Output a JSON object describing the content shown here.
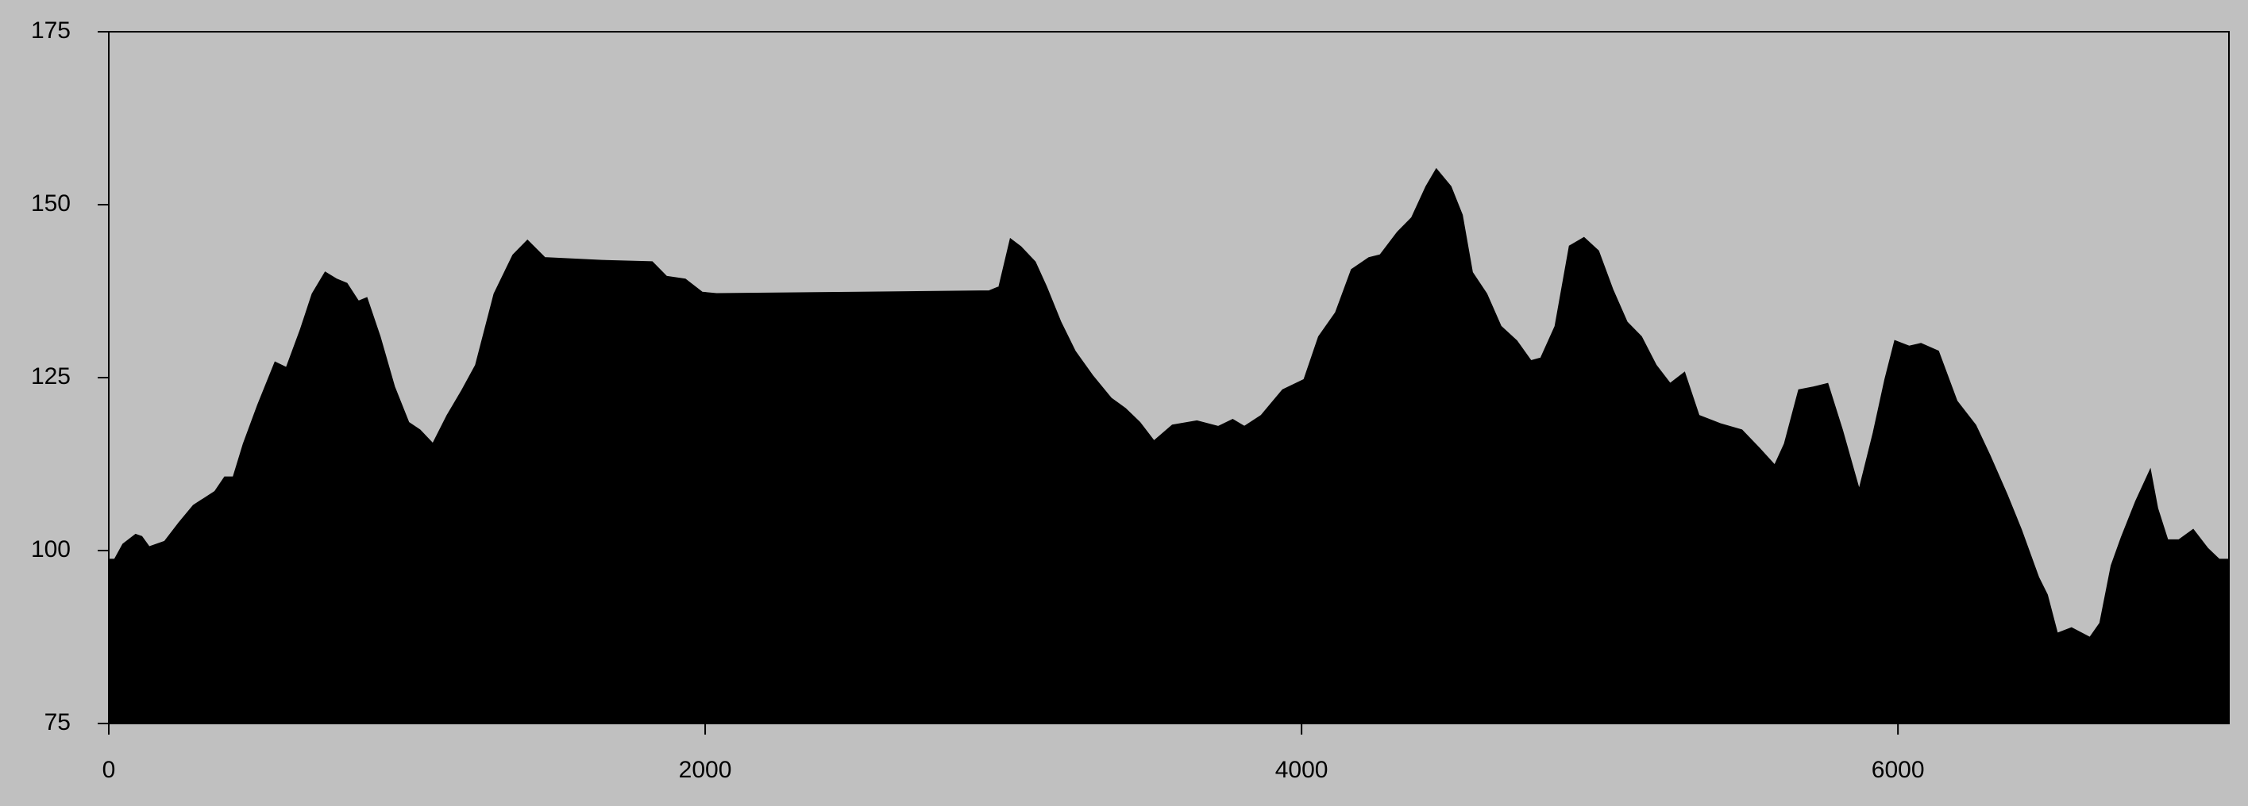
{
  "chart_data": {
    "type": "area",
    "color": "#000000",
    "x": [
      0,
      20,
      48,
      90,
      110,
      135,
      188,
      236,
      284,
      356,
      389,
      418,
      452,
      500,
      558,
      596,
      644,
      683,
      726,
      764,
      798,
      837,
      865,
      909,
      957,
      1005,
      1043,
      1087,
      1135,
      1183,
      1231,
      1293,
      1356,
      1404,
      1462,
      1654,
      1822,
      1870,
      1933,
      1990,
      2038,
      2519,
      2952,
      2986,
      3024,
      3058,
      3106,
      3144,
      3192,
      3240,
      3298,
      3361,
      3409,
      3457,
      3505,
      3567,
      3649,
      3721,
      3769,
      3808,
      3865,
      3937,
      4009,
      4058,
      4115,
      4168,
      4226,
      4264,
      4322,
      4370,
      4418,
      4452,
      4500,
      4538,
      4572,
      4620,
      4668,
      4721,
      4769,
      4803,
      4851,
      4899,
      4947,
      4995,
      5043,
      5091,
      5139,
      5188,
      5236,
      5284,
      5332,
      5404,
      5476,
      5534,
      5587,
      5620,
      5668,
      5716,
      5764,
      5813,
      5870,
      5918,
      5957,
      5990,
      6038,
      6077,
      6135,
      6197,
      6260,
      6308,
      6365,
      6413,
      6471,
      6500,
      6534,
      6582,
      6644,
      6678,
      6716,
      6750,
      6798,
      6846,
      6870,
      6904,
      6942,
      6990,
      7038,
      7077,
      7110
    ],
    "y": [
      98.7,
      98.7,
      100.9,
      102.3,
      102,
      100.5,
      101.3,
      104,
      106.5,
      108.5,
      110.6,
      110.6,
      115.4,
      121,
      127.2,
      126.4,
      132,
      137.1,
      140.2,
      139.2,
      138.6,
      136,
      136.5,
      130.9,
      123.7,
      118.5,
      117.4,
      115.4,
      119.5,
      123,
      126.8,
      137.1,
      142.7,
      144.8,
      142.3,
      141.9,
      141.7,
      139.6,
      139.2,
      137.3,
      137.1,
      137.3,
      137.5,
      138.1,
      145,
      143.9,
      141.7,
      138.1,
      133,
      128.8,
      125.3,
      122,
      120.5,
      118.5,
      115.8,
      118.1,
      118.7,
      117.9,
      118.9,
      117.9,
      119.5,
      123.2,
      124.7,
      130.9,
      134.4,
      140.6,
      142.3,
      142.7,
      146,
      148.1,
      152.6,
      155.1,
      152.6,
      148.5,
      140.2,
      137.1,
      132.4,
      130.3,
      127.4,
      127.8,
      132.4,
      144,
      145.2,
      143.3,
      137.7,
      133,
      130.9,
      126.8,
      124.1,
      125.7,
      119.5,
      118.3,
      117.4,
      114.8,
      112.3,
      115.4,
      123.2,
      123.6,
      124.1,
      117.4,
      108.7,
      117,
      124.7,
      130.3,
      129.5,
      129.9,
      128.8,
      121.6,
      118.1,
      113.7,
      108.1,
      103,
      96.1,
      93.6,
      88,
      88.8,
      87.4,
      89.5,
      97.8,
      101.9,
      107.1,
      111.6,
      106.1,
      101.5,
      101.5,
      103,
      100.3,
      98.7,
      98.7
    ],
    "xlim": [
      0,
      7110
    ],
    "ylim": [
      75,
      175
    ],
    "xticks": [
      0,
      2000,
      4000,
      6000
    ],
    "yticks": [
      75,
      100,
      125,
      150,
      175
    ]
  }
}
